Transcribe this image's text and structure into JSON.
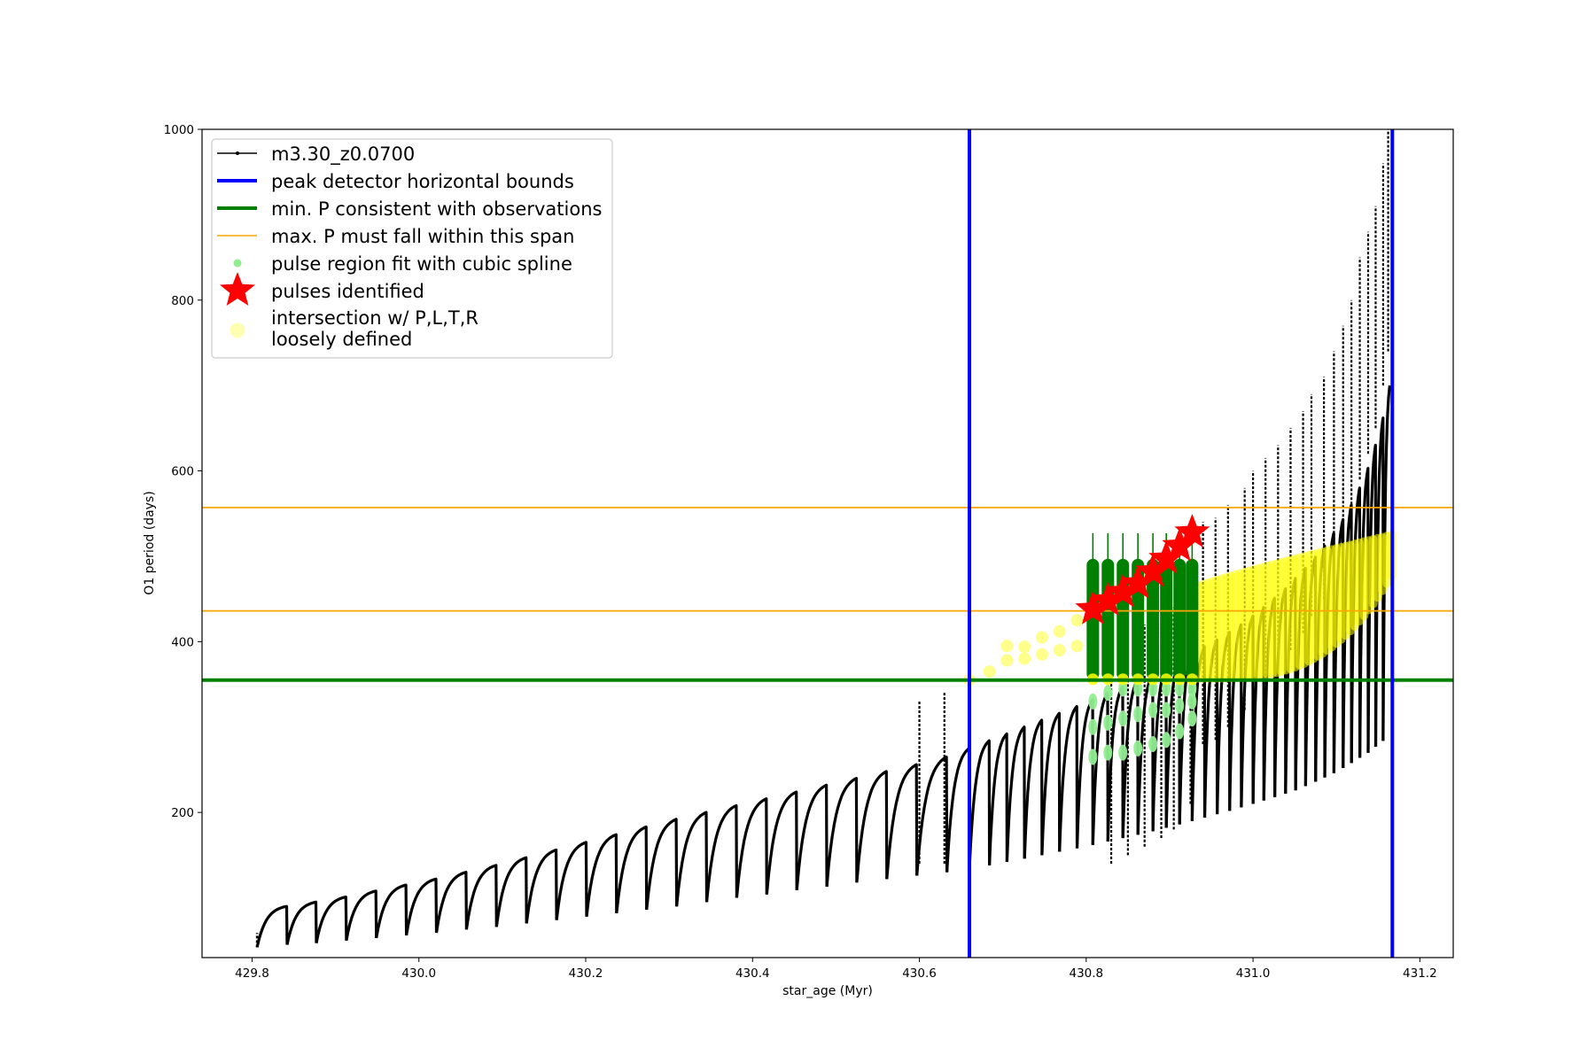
{
  "chart_data": {
    "type": "line",
    "title": "",
    "xlabel": "star_age (Myr)",
    "ylabel": "O1 period (days)",
    "xlim": [
      429.74,
      431.24
    ],
    "ylim": [
      30,
      1000
    ],
    "xticks": [
      429.8,
      430.0,
      430.2,
      430.4,
      430.6,
      430.8,
      431.0,
      431.2
    ],
    "xtick_labels": [
      "429.8",
      "430.0",
      "430.2",
      "430.4",
      "430.6",
      "430.8",
      "431.0",
      "431.2"
    ],
    "yticks": [
      200,
      400,
      600,
      800,
      1000
    ],
    "ytick_labels": [
      "200",
      "400",
      "600",
      "800",
      "1000"
    ],
    "grid": false,
    "legend_position": "upper-left",
    "vertical_bounds": [
      430.66,
      431.167
    ],
    "min_period": 355,
    "max_period_span": [
      436,
      557
    ],
    "series": [
      {
        "name": "m3.30_z0.0700",
        "color": "#000000",
        "pulse_cycles": [
          {
            "start": 429.806,
            "min": 42,
            "max": 90
          },
          {
            "start": 429.842,
            "min": 45,
            "max": 95
          },
          {
            "start": 429.877,
            "min": 47,
            "max": 101
          },
          {
            "start": 429.913,
            "min": 50,
            "max": 108
          },
          {
            "start": 429.949,
            "min": 53,
            "max": 115
          },
          {
            "start": 429.985,
            "min": 56,
            "max": 122
          },
          {
            "start": 430.021,
            "min": 59,
            "max": 130
          },
          {
            "start": 430.057,
            "min": 63,
            "max": 138
          },
          {
            "start": 430.093,
            "min": 66,
            "max": 147
          },
          {
            "start": 430.129,
            "min": 70,
            "max": 156
          },
          {
            "start": 430.165,
            "min": 74,
            "max": 165
          },
          {
            "start": 430.201,
            "min": 78,
            "max": 174
          },
          {
            "start": 430.237,
            "min": 82,
            "max": 183
          },
          {
            "start": 430.273,
            "min": 86,
            "max": 192
          },
          {
            "start": 430.309,
            "min": 90,
            "max": 200
          },
          {
            "start": 430.345,
            "min": 95,
            "max": 208
          },
          {
            "start": 430.381,
            "min": 100,
            "max": 216
          },
          {
            "start": 430.417,
            "min": 104,
            "max": 224
          },
          {
            "start": 430.453,
            "min": 109,
            "max": 232
          },
          {
            "start": 430.489,
            "min": 113,
            "max": 240
          },
          {
            "start": 430.525,
            "min": 118,
            "max": 248
          },
          {
            "start": 430.561,
            "min": 122,
            "max": 256
          },
          {
            "start": 430.597,
            "min": 126,
            "max": 265
          },
          {
            "start": 430.633,
            "min": 130,
            "max": 275
          },
          {
            "start": 430.66,
            "min": 134,
            "max": 284
          },
          {
            "start": 430.684,
            "min": 138,
            "max": 292
          },
          {
            "start": 430.705,
            "min": 142,
            "max": 300
          },
          {
            "start": 430.726,
            "min": 146,
            "max": 308
          },
          {
            "start": 430.747,
            "min": 150,
            "max": 316
          },
          {
            "start": 430.768,
            "min": 154,
            "max": 324
          },
          {
            "start": 430.789,
            "min": 158,
            "max": 332
          },
          {
            "start": 430.808,
            "min": 162,
            "max": 340
          },
          {
            "start": 430.826,
            "min": 166,
            "max": 347
          },
          {
            "start": 430.844,
            "min": 170,
            "max": 355
          },
          {
            "start": 430.862,
            "min": 174,
            "max": 362
          },
          {
            "start": 430.88,
            "min": 178,
            "max": 370
          },
          {
            "start": 430.896,
            "min": 182,
            "max": 378
          },
          {
            "start": 430.912,
            "min": 186,
            "max": 386
          },
          {
            "start": 430.927,
            "min": 190,
            "max": 394
          },
          {
            "start": 430.942,
            "min": 194,
            "max": 402
          },
          {
            "start": 430.957,
            "min": 198,
            "max": 411
          },
          {
            "start": 430.972,
            "min": 202,
            "max": 420
          },
          {
            "start": 430.986,
            "min": 206,
            "max": 430
          },
          {
            "start": 431.0,
            "min": 210,
            "max": 440
          },
          {
            "start": 431.013,
            "min": 214,
            "max": 451
          },
          {
            "start": 431.026,
            "min": 218,
            "max": 462
          },
          {
            "start": 431.039,
            "min": 222,
            "max": 474
          },
          {
            "start": 431.051,
            "min": 226,
            "max": 486
          },
          {
            "start": 431.063,
            "min": 231,
            "max": 499
          },
          {
            "start": 431.075,
            "min": 236,
            "max": 512
          },
          {
            "start": 431.086,
            "min": 241,
            "max": 527
          },
          {
            "start": 431.097,
            "min": 246,
            "max": 543
          },
          {
            "start": 431.108,
            "min": 252,
            "max": 560
          },
          {
            "start": 431.118,
            "min": 258,
            "max": 580
          },
          {
            "start": 431.128,
            "min": 264,
            "max": 603
          },
          {
            "start": 431.138,
            "min": 270,
            "max": 630
          },
          {
            "start": 431.147,
            "min": 277,
            "max": 662
          },
          {
            "start": 431.156,
            "min": 284,
            "max": 700
          }
        ],
        "spikes": [
          {
            "x": 430.6,
            "y": 330
          },
          {
            "x": 430.63,
            "y": 340
          },
          {
            "x": 430.66,
            "y": 345
          },
          {
            "x": 430.83,
            "y": 400
          },
          {
            "x": 430.85,
            "y": 410
          },
          {
            "x": 430.87,
            "y": 420
          },
          {
            "x": 430.89,
            "y": 430
          },
          {
            "x": 430.905,
            "y": 440
          },
          {
            "x": 430.925,
            "y": 470
          },
          {
            "x": 430.94,
            "y": 540
          },
          {
            "x": 430.955,
            "y": 545
          },
          {
            "x": 430.97,
            "y": 560
          },
          {
            "x": 430.99,
            "y": 580
          },
          {
            "x": 431.0,
            "y": 600
          },
          {
            "x": 431.015,
            "y": 615
          },
          {
            "x": 431.03,
            "y": 630
          },
          {
            "x": 431.045,
            "y": 650
          },
          {
            "x": 431.06,
            "y": 670
          },
          {
            "x": 431.07,
            "y": 690
          },
          {
            "x": 431.085,
            "y": 710
          },
          {
            "x": 431.097,
            "y": 740
          },
          {
            "x": 431.108,
            "y": 770
          },
          {
            "x": 431.118,
            "y": 800
          },
          {
            "x": 431.128,
            "y": 850
          },
          {
            "x": 431.138,
            "y": 880
          },
          {
            "x": 431.147,
            "y": 910
          },
          {
            "x": 431.156,
            "y": 960
          },
          {
            "x": 431.162,
            "y": 1000
          }
        ]
      },
      {
        "name": "peak detector horizontal bounds",
        "color": "#0000ff"
      },
      {
        "name": "min. P consistent with observations",
        "color": "#008000"
      },
      {
        "name": "max. P must fall within this span",
        "color": "#ffa500"
      },
      {
        "name": "pulse region fit with cubic spline",
        "color": "#90ee90",
        "points": [
          {
            "x": 430.808,
            "y": 265
          },
          {
            "x": 430.808,
            "y": 300
          },
          {
            "x": 430.808,
            "y": 330
          },
          {
            "x": 430.826,
            "y": 270
          },
          {
            "x": 430.826,
            "y": 305
          },
          {
            "x": 430.826,
            "y": 340
          },
          {
            "x": 430.844,
            "y": 270
          },
          {
            "x": 430.844,
            "y": 310
          },
          {
            "x": 430.844,
            "y": 345
          },
          {
            "x": 430.862,
            "y": 275
          },
          {
            "x": 430.862,
            "y": 315
          },
          {
            "x": 430.862,
            "y": 345
          },
          {
            "x": 430.88,
            "y": 280
          },
          {
            "x": 430.88,
            "y": 320
          },
          {
            "x": 430.88,
            "y": 345
          },
          {
            "x": 430.896,
            "y": 285
          },
          {
            "x": 430.896,
            "y": 320
          },
          {
            "x": 430.896,
            "y": 345
          },
          {
            "x": 430.912,
            "y": 295
          },
          {
            "x": 430.912,
            "y": 325
          },
          {
            "x": 430.912,
            "y": 345
          },
          {
            "x": 430.927,
            "y": 310
          },
          {
            "x": 430.927,
            "y": 330
          },
          {
            "x": 430.927,
            "y": 345
          }
        ]
      },
      {
        "name": "pulses identified",
        "color": "#ff0000",
        "points": [
          {
            "x": 430.808,
            "y": 438
          },
          {
            "x": 430.826,
            "y": 448
          },
          {
            "x": 430.844,
            "y": 458
          },
          {
            "x": 430.862,
            "y": 468
          },
          {
            "x": 430.88,
            "y": 482
          },
          {
            "x": 430.896,
            "y": 497
          },
          {
            "x": 430.912,
            "y": 512
          },
          {
            "x": 430.927,
            "y": 528
          }
        ]
      },
      {
        "name": "intersection w/ P,L,T,R\nloosely defined",
        "color": "#ffff00",
        "points": [
          {
            "x": 430.66,
            "y": 355
          },
          {
            "x": 430.684,
            "y": 365
          },
          {
            "x": 430.705,
            "y": 378
          },
          {
            "x": 430.705,
            "y": 395
          },
          {
            "x": 430.726,
            "y": 380
          },
          {
            "x": 430.726,
            "y": 394
          },
          {
            "x": 430.747,
            "y": 385
          },
          {
            "x": 430.747,
            "y": 405
          },
          {
            "x": 430.768,
            "y": 390
          },
          {
            "x": 430.768,
            "y": 412
          },
          {
            "x": 430.789,
            "y": 395
          },
          {
            "x": 430.789,
            "y": 425
          }
        ]
      }
    ]
  }
}
